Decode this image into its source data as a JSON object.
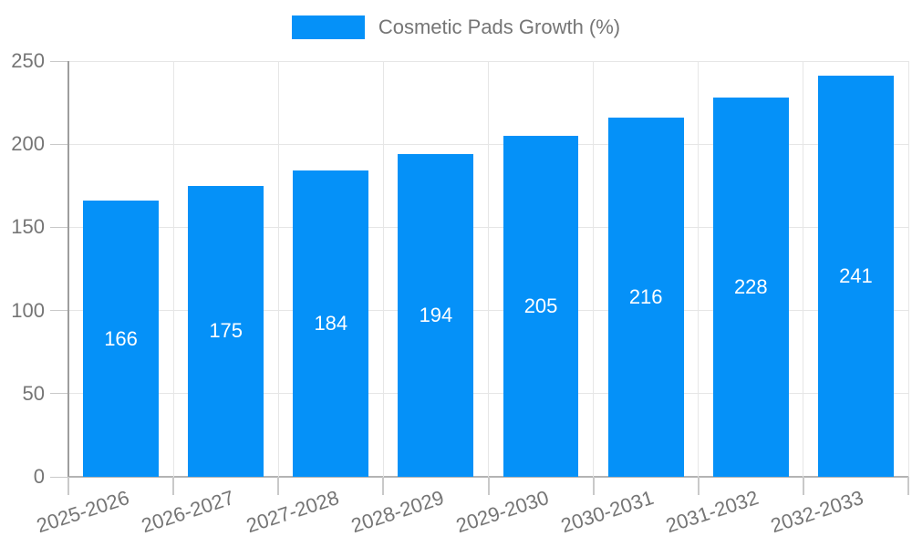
{
  "chart_data": {
    "type": "bar",
    "legend": {
      "position": "top",
      "label": "Cosmetic Pads Growth (%)"
    },
    "categories": [
      "2025-2026",
      "2026-2027",
      "2027-2028",
      "2028-2029",
      "2029-2030",
      "2030-2031",
      "2031-2032",
      "2032-2033"
    ],
    "series": [
      {
        "name": "Cosmetic Pads Growth (%)",
        "values": [
          166,
          175,
          184,
          194,
          205,
          216,
          228,
          241
        ],
        "color": "#0591f8"
      }
    ],
    "xlabel": "",
    "ylabel": "",
    "ylim": [
      0,
      250
    ],
    "yticks": [
      0,
      50,
      100,
      150,
      200,
      250
    ],
    "grid": true,
    "value_labels": "inside-center",
    "value_label_color": "#ffffff",
    "colors": {
      "axis_text": "#757575",
      "gridline": "#e6e6e6",
      "axis_line": "#9e9e9e",
      "baseline": "#b3b3b3",
      "tick": "#c9c9c9",
      "background": "#ffffff"
    }
  }
}
